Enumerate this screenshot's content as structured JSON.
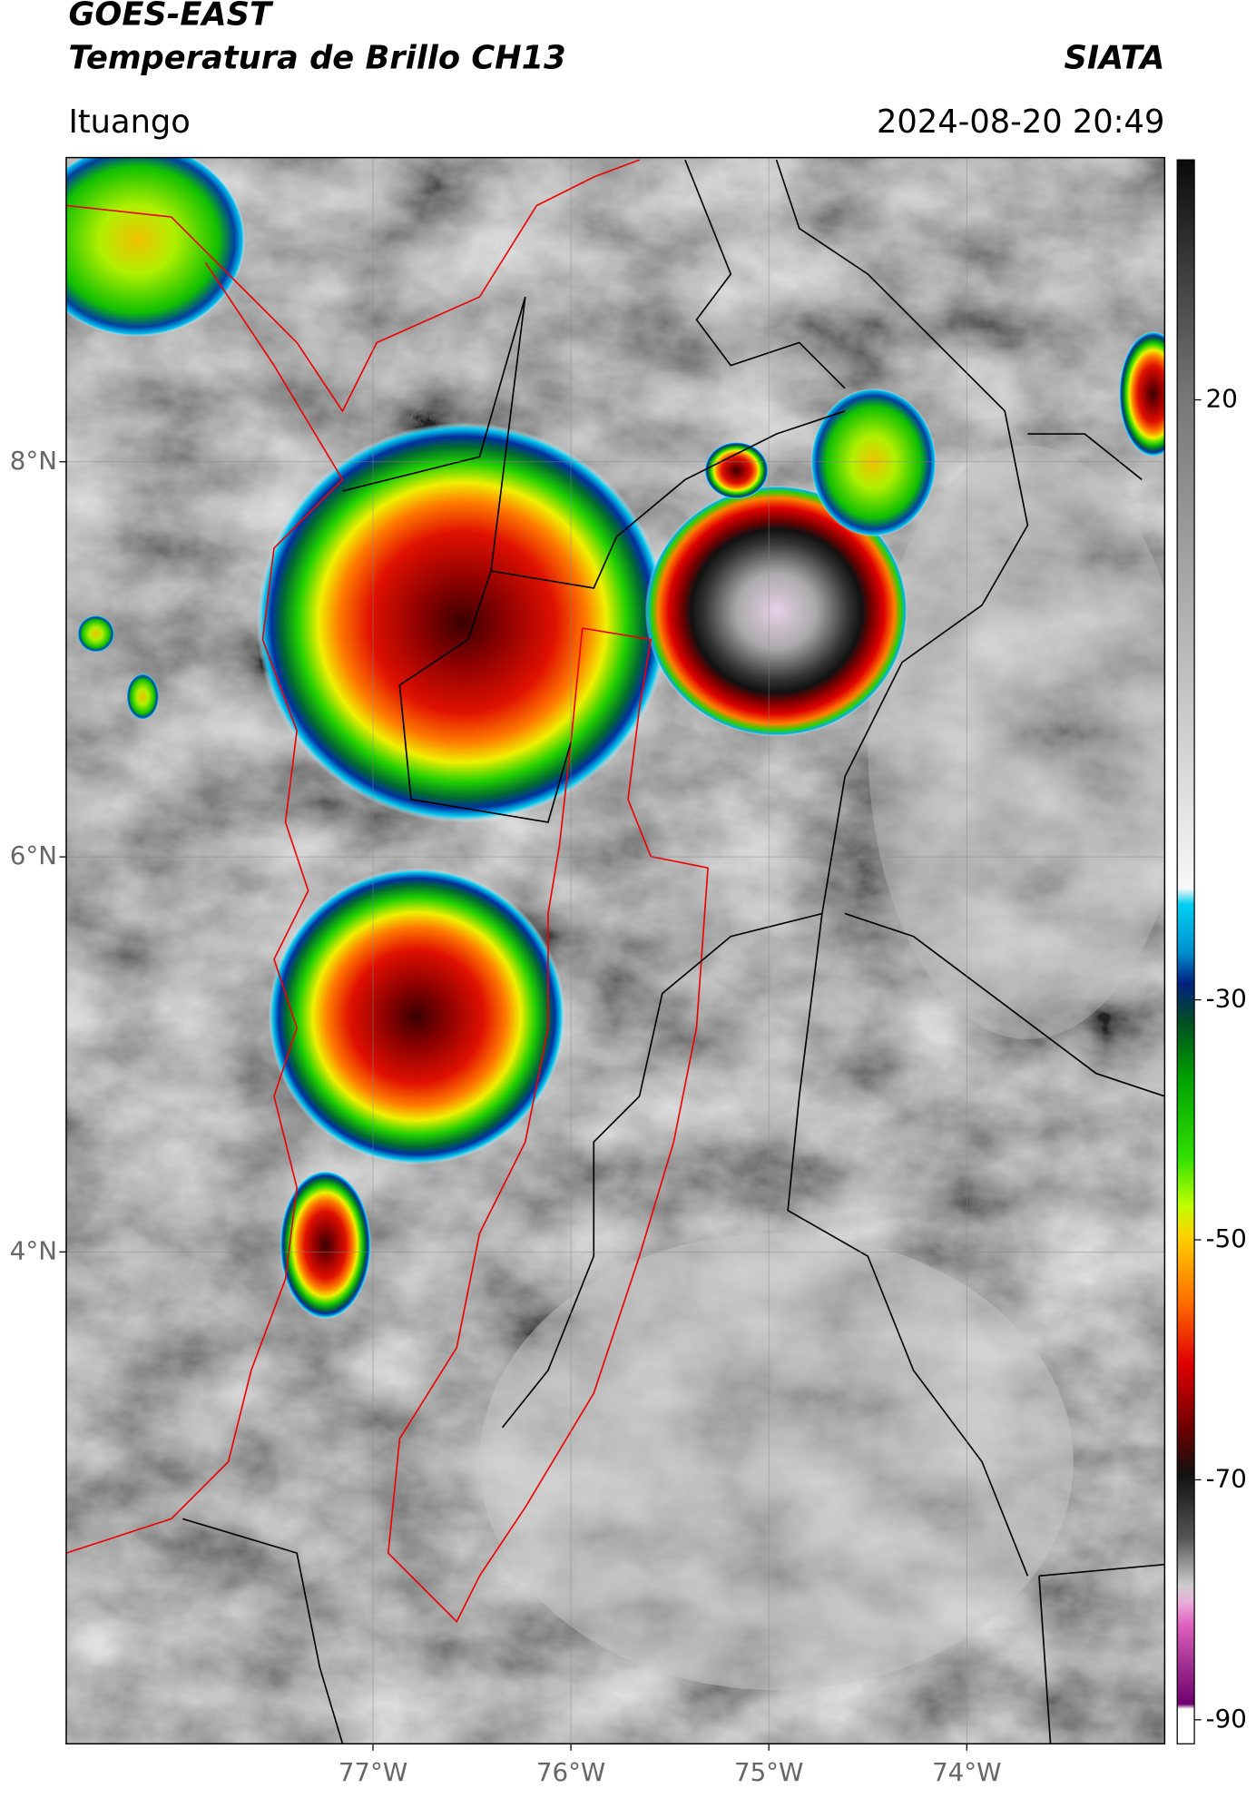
{
  "header": {
    "title_line1": "GOES-EAST",
    "title_line2": "Temperatura de Brillo CH13",
    "agency": "SIATA",
    "location": "Ituango",
    "timestamp": "2024-08-20 20:49"
  },
  "map": {
    "lon_lim": [
      -78.55,
      -73.0
    ],
    "lat_lim": [
      1.51,
      9.54
    ],
    "lon_ticks": [
      {
        "value": -77,
        "label": "77°W"
      },
      {
        "value": -76,
        "label": "76°W"
      },
      {
        "value": -75,
        "label": "75°W"
      },
      {
        "value": -74,
        "label": "74°W"
      }
    ],
    "lat_ticks": [
      {
        "value": 8,
        "label": "8°N"
      },
      {
        "value": 6,
        "label": "6°N"
      },
      {
        "value": 4,
        "label": "4°N"
      }
    ]
  },
  "colorbar": {
    "lim": [
      -92,
      40
    ],
    "ticks": [
      20,
      -30,
      -50,
      -70,
      -90
    ]
  }
}
